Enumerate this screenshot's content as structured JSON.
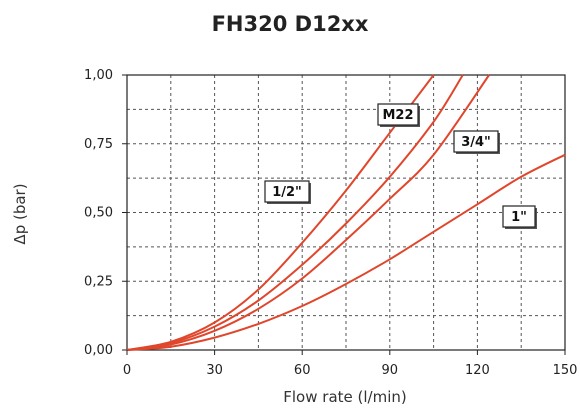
{
  "chart_data": {
    "type": "line",
    "title": "FH320 D12xx",
    "xlabel": "Flow rate (l/min)",
    "ylabel": "Δp (bar)",
    "xlim": [
      0,
      150
    ],
    "ylim": [
      0,
      1
    ],
    "xticks": [
      0,
      30,
      60,
      90,
      120,
      150
    ],
    "xtick_labels": [
      "0",
      "30",
      "60",
      "90",
      "120",
      "150"
    ],
    "yticks": [
      0,
      0.25,
      0.5,
      0.75,
      1
    ],
    "ytick_labels": [
      "0,00",
      "0,25",
      "0,50",
      "0,75",
      "1,00"
    ],
    "grid": true,
    "series_color": "#e0462c",
    "series": [
      {
        "name": "1/2\"",
        "x": [
          0,
          15,
          30,
          45,
          60,
          75,
          90,
          105
        ],
        "y": [
          0,
          0.03,
          0.1,
          0.22,
          0.39,
          0.58,
          0.79,
          1.0
        ]
      },
      {
        "name": "M22",
        "x": [
          0,
          15,
          30,
          45,
          60,
          75,
          90,
          105,
          115
        ],
        "y": [
          0,
          0.025,
          0.085,
          0.18,
          0.31,
          0.46,
          0.63,
          0.83,
          1.0
        ]
      },
      {
        "name": "3/4\"",
        "x": [
          0,
          15,
          30,
          45,
          60,
          75,
          90,
          105,
          124
        ],
        "y": [
          0,
          0.02,
          0.07,
          0.15,
          0.26,
          0.4,
          0.55,
          0.71,
          1.0
        ]
      },
      {
        "name": "1\"",
        "x": [
          0,
          15,
          30,
          45,
          60,
          75,
          90,
          105,
          120,
          135,
          150
        ],
        "y": [
          0,
          0.012,
          0.045,
          0.095,
          0.16,
          0.24,
          0.33,
          0.43,
          0.53,
          0.63,
          0.71
        ]
      }
    ]
  }
}
